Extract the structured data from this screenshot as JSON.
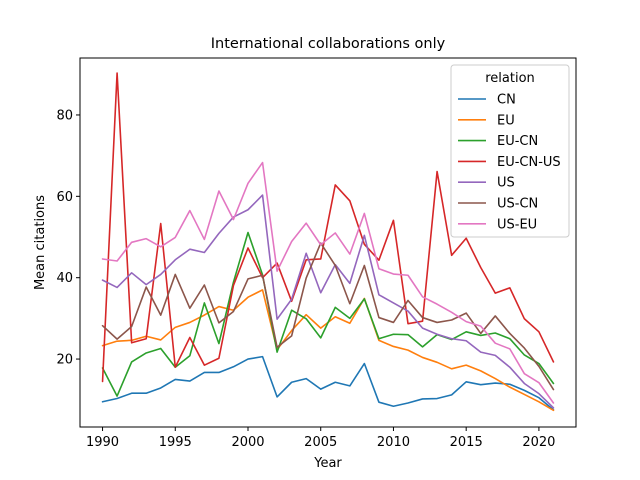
{
  "chart_data": {
    "type": "line",
    "title": "International collaborations only",
    "xlabel": "Year",
    "ylabel": "Mean citations",
    "xlim": [
      1988.45,
      2022.55
    ],
    "ylim": [
      3.3,
      94.0
    ],
    "xticks": [
      1990,
      1995,
      2000,
      2005,
      2010,
      2015,
      2020
    ],
    "yticks": [
      20,
      40,
      60,
      80
    ],
    "grid": false,
    "legend": {
      "title": "relation",
      "placement": "top-right"
    },
    "x": [
      1990,
      1991,
      1992,
      1993,
      1994,
      1995,
      1996,
      1997,
      1998,
      1999,
      2000,
      2001,
      2002,
      2003,
      2004,
      2005,
      2006,
      2007,
      2008,
      2009,
      2010,
      2011,
      2012,
      2013,
      2014,
      2015,
      2016,
      2017,
      2018,
      2019,
      2020,
      2021
    ],
    "series": [
      {
        "name": "CN",
        "color": "#1f77b4",
        "values": [
          9.5,
          10.3,
          11.6,
          11.6,
          12.9,
          15.0,
          14.6,
          16.7,
          16.7,
          18.1,
          20.0,
          20.6,
          10.7,
          14.3,
          15.2,
          12.6,
          14.3,
          13.4,
          18.9,
          9.4,
          8.4,
          9.2,
          10.2,
          10.3,
          11.2,
          14.4,
          13.7,
          14.1,
          13.8,
          12.3,
          10.5,
          7.5
        ]
      },
      {
        "name": "EU",
        "color": "#ff7f0e",
        "values": [
          23.3,
          24.4,
          24.6,
          25.6,
          24.7,
          27.8,
          29.0,
          30.8,
          32.9,
          32.0,
          35.2,
          37.0,
          22.3,
          27.0,
          30.9,
          27.6,
          30.4,
          28.8,
          34.9,
          24.6,
          23.1,
          22.2,
          20.4,
          19.2,
          17.6,
          18.5,
          17.1,
          15.2,
          13.1,
          11.3,
          9.5,
          7.4
        ]
      },
      {
        "name": "EU-CN",
        "color": "#2ca02c",
        "values": [
          17.8,
          10.9,
          19.3,
          21.5,
          22.6,
          18.0,
          20.8,
          33.8,
          23.8,
          38.9,
          51.1,
          40.7,
          21.7,
          32.0,
          29.9,
          25.2,
          32.7,
          30.0,
          34.8,
          25.0,
          26.1,
          26.0,
          23.0,
          26.0,
          24.8,
          26.7,
          25.8,
          26.4,
          25.0,
          21.0,
          18.9,
          14.0
        ]
      },
      {
        "name": "EU-CN-US",
        "color": "#d62728",
        "values": [
          14.5,
          90.3,
          24.0,
          25.0,
          53.3,
          18.0,
          25.3,
          18.5,
          20.2,
          38.1,
          47.3,
          40.0,
          43.6,
          34.2,
          44.4,
          44.6,
          62.8,
          58.9,
          48.2,
          44.3,
          54.1,
          28.7,
          29.3,
          66.1,
          45.5,
          49.7,
          42.5,
          36.2,
          37.5,
          29.9,
          26.7,
          19.3
        ]
      },
      {
        "name": "US",
        "color": "#9467bd",
        "values": [
          39.4,
          37.6,
          41.2,
          38.3,
          40.8,
          44.4,
          47.0,
          46.2,
          50.9,
          54.9,
          56.7,
          60.3,
          29.8,
          34.7,
          46.0,
          36.3,
          43.2,
          38.6,
          50.4,
          35.8,
          33.8,
          31.8,
          27.6,
          26.1,
          25.0,
          24.5,
          21.7,
          20.9,
          18.0,
          14.0,
          11.5,
          8.0
        ]
      },
      {
        "name": "US-CN",
        "color": "#8c564b",
        "values": [
          28.2,
          24.9,
          28.0,
          37.7,
          30.8,
          40.8,
          32.5,
          38.2,
          28.9,
          31.7,
          39.7,
          40.6,
          22.9,
          25.7,
          39.9,
          48.5,
          43.0,
          33.6,
          43.0,
          30.2,
          29.0,
          34.4,
          30.2,
          29.0,
          29.6,
          31.3,
          26.3,
          30.6,
          26.3,
          22.7,
          18.2,
          12.5
        ]
      },
      {
        "name": "US-EU",
        "color": "#e377c2",
        "values": [
          44.6,
          44.1,
          48.7,
          49.6,
          47.6,
          49.9,
          56.5,
          49.4,
          61.3,
          54.3,
          63.2,
          68.3,
          41.6,
          48.9,
          53.4,
          48.1,
          51.0,
          45.8,
          55.8,
          42.2,
          40.9,
          40.6,
          35.3,
          33.5,
          31.5,
          29.2,
          28.1,
          23.9,
          22.5,
          16.4,
          14.2,
          9.2
        ]
      }
    ]
  }
}
